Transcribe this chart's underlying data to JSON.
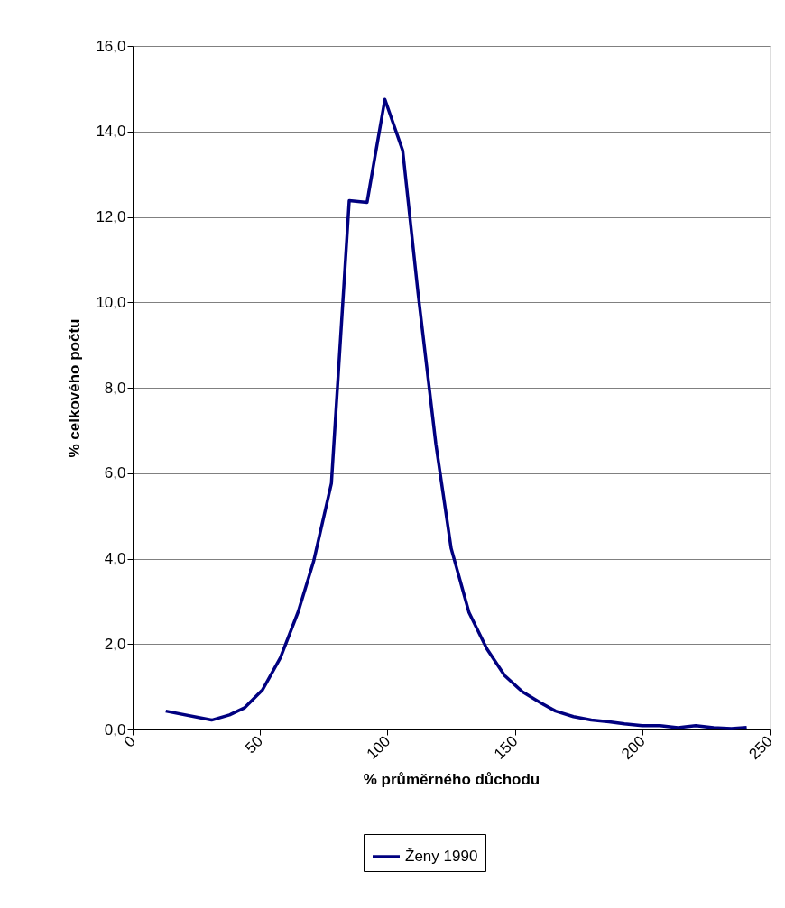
{
  "chart_data": {
    "type": "line",
    "xlabel": "% průměrného důchodu",
    "ylabel": "% celkového počtu",
    "x": [
      13,
      31,
      38,
      44,
      51,
      58,
      65,
      71,
      78,
      85,
      92,
      99,
      106,
      112,
      119,
      125,
      132,
      139,
      146,
      153,
      160,
      166,
      173,
      180,
      187,
      193,
      200,
      207,
      214,
      221,
      228,
      235,
      241
    ],
    "series": [
      {
        "name": "Ženy 1990",
        "color": "#000080",
        "values": [
          0.43,
          0.22,
          0.34,
          0.51,
          0.93,
          1.68,
          2.76,
          3.93,
          5.76,
          12.38,
          12.34,
          14.75,
          13.55,
          10.22,
          6.68,
          4.24,
          2.74,
          1.89,
          1.26,
          0.88,
          0.63,
          0.43,
          0.3,
          0.22,
          0.18,
          0.13,
          0.09,
          0.09,
          0.04,
          0.09,
          0.04,
          0.02,
          0.05
        ]
      }
    ],
    "xlim": [
      0,
      250
    ],
    "xticks": [
      0,
      50,
      100,
      150,
      200,
      250
    ],
    "ylim": [
      0,
      16
    ],
    "yticks": [
      {
        "value": 0,
        "label": "0,0"
      },
      {
        "value": 2,
        "label": "2,0"
      },
      {
        "value": 4,
        "label": "4,0"
      },
      {
        "value": 6,
        "label": "6,0"
      },
      {
        "value": 8,
        "label": "8,0"
      },
      {
        "value": 10,
        "label": "10,0"
      },
      {
        "value": 12,
        "label": "12,0"
      },
      {
        "value": 14,
        "label": "14,0"
      },
      {
        "value": 16,
        "label": "16,0"
      }
    ],
    "grid": "y",
    "legend": "bottom",
    "marker": "none",
    "line_style": "solid"
  }
}
